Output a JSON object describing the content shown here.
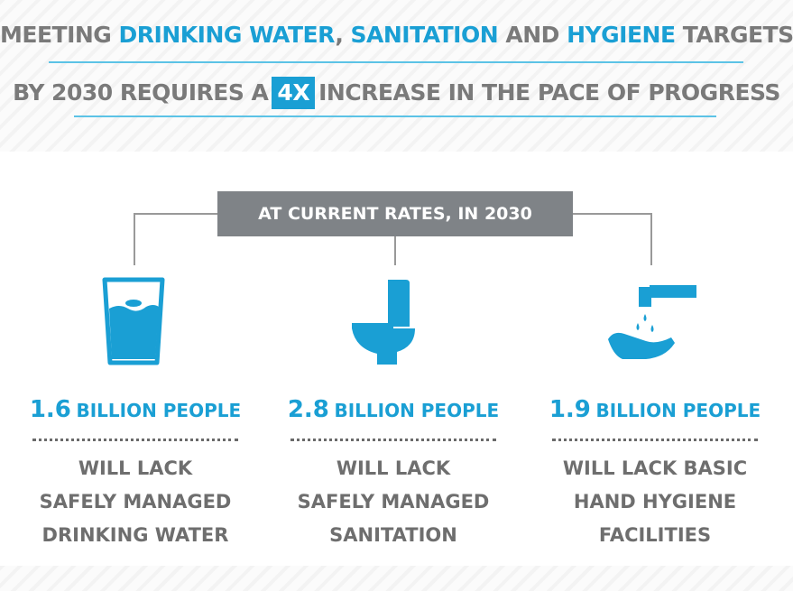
{
  "headline": {
    "line1": {
      "part1": "MEETING ",
      "accent1": "DRINKING WATER",
      "sep": ", ",
      "accent2": "SANITATION",
      "part2": " AND ",
      "accent3": "HYGIENE",
      "part3": " TARGETS"
    },
    "line2": {
      "part1": "BY 2030 REQUIRES A",
      "highlight": "4X",
      "part2": "INCREASE IN THE PACE OF PROGRESS"
    }
  },
  "banner": {
    "label": "AT CURRENT RATES, IN 2030"
  },
  "columns": [
    {
      "icon": "water-glass-icon",
      "number": "1.6",
      "unit": "BILLION PEOPLE",
      "lines": [
        "WILL LACK",
        "SAFELY MANAGED",
        "DRINKING WATER"
      ]
    },
    {
      "icon": "toilet-icon",
      "number": "2.8",
      "unit": "BILLION PEOPLE",
      "lines": [
        "WILL LACK",
        "SAFELY MANAGED",
        "SANITATION"
      ]
    },
    {
      "icon": "handwashing-icon",
      "number": "1.9",
      "unit": "BILLION PEOPLE",
      "lines": [
        "WILL LACK BASIC",
        "HAND HYGIENE",
        "FACILITIES"
      ]
    }
  ],
  "colors": {
    "accent": "#1a9fd4",
    "text_gray": "#7a7a7a",
    "banner_bg": "#7f8387"
  }
}
